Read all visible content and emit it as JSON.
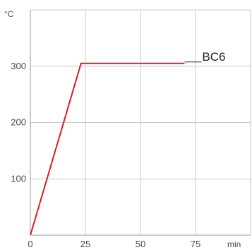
{
  "chart_data": {
    "type": "line",
    "title": "",
    "xlabel": "min",
    "ylabel": "°C",
    "xlim": [
      0,
      100
    ],
    "ylim": [
      0,
      400
    ],
    "xticks": [
      0,
      25,
      50,
      75
    ],
    "yticks": [
      100,
      200,
      300
    ],
    "x_tick_labels": [
      "0",
      "25",
      "50",
      "75"
    ],
    "y_tick_labels": [
      "100",
      "200",
      "300"
    ],
    "grid": true,
    "legend": "none",
    "series": [
      {
        "name": "BC6",
        "color": "#d0212a",
        "x": [
          0,
          23,
          70
        ],
        "y": [
          0,
          305,
          305
        ]
      }
    ]
  }
}
